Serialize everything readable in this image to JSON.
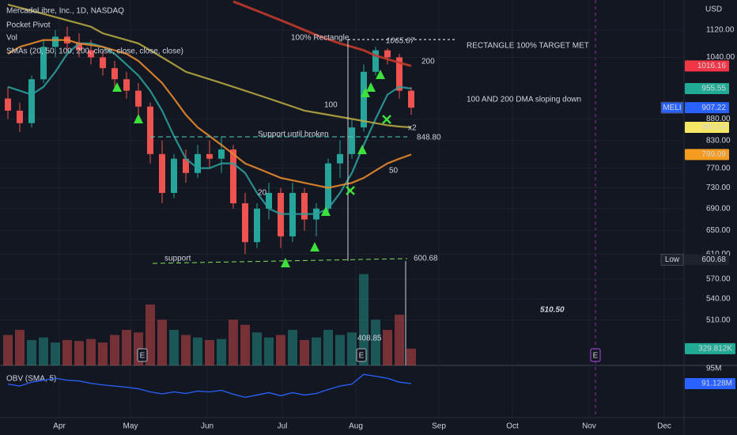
{
  "header": {
    "symbol": "MercadoLibre, Inc., 1D, NASDAQ",
    "indicators": [
      "Pocket Pivot",
      "Vol",
      "SMAs (20, 50, 100, 200, close, close, close, close)"
    ]
  },
  "chart_data": {
    "type": "candlestick",
    "currency": "USD",
    "log": true,
    "grid": true,
    "ylim": [
      451,
      1215
    ],
    "yticks": [
      {
        "value": 1120,
        "label": "1120.00"
      },
      {
        "value": 1040,
        "label": "1040.00"
      },
      {
        "value": 880,
        "label": "880.00"
      },
      {
        "value": 830,
        "label": "830.00"
      },
      {
        "value": 770,
        "label": "770.00"
      },
      {
        "value": 730,
        "label": "730.00"
      },
      {
        "value": 690,
        "label": "690.00"
      },
      {
        "value": 650,
        "label": "650.00"
      },
      {
        "value": 610,
        "label": "610.00"
      },
      {
        "value": 570,
        "label": "570.00"
      },
      {
        "value": 540,
        "label": "540.00"
      },
      {
        "value": 510,
        "label": "510.00"
      }
    ],
    "months": [
      "Apr",
      "May",
      "Jun",
      "Jul",
      "Aug",
      "Sep",
      "Oct",
      "Nov",
      "Dec"
    ],
    "up_color": "#26a69a",
    "down_color": "#ef5350",
    "candles": {
      "open": [
        930,
        900,
        870,
        980,
        1070,
        1100,
        1080,
        1060,
        1040,
        1010,
        980,
        950,
        910,
        800,
        720,
        790,
        760,
        800,
        790,
        810,
        700,
        630,
        690,
        720,
        640,
        720,
        670,
        690,
        780,
        800,
        860,
        1000,
        1060,
        1040,
        950
      ],
      "high": [
        960,
        920,
        990,
        1090,
        1120,
        1130,
        1110,
        1090,
        1060,
        1030,
        1000,
        970,
        920,
        830,
        800,
        810,
        820,
        830,
        840,
        820,
        720,
        700,
        740,
        730,
        740,
        730,
        700,
        790,
        830,
        880,
        1020,
        1070,
        1066,
        1050,
        960
      ],
      "low": [
        880,
        850,
        860,
        970,
        1040,
        1060,
        1040,
        1020,
        990,
        960,
        930,
        890,
        780,
        700,
        710,
        740,
        750,
        770,
        760,
        690,
        610,
        620,
        670,
        620,
        630,
        650,
        640,
        680,
        750,
        790,
        850,
        990,
        1020,
        930,
        890
      ],
      "close": [
        900,
        870,
        980,
        1070,
        1100,
        1080,
        1060,
        1040,
        1010,
        980,
        950,
        910,
        800,
        720,
        790,
        760,
        800,
        790,
        810,
        700,
        630,
        690,
        720,
        640,
        720,
        670,
        690,
        780,
        800,
        860,
        1000,
        1060,
        1040,
        950,
        907.22
      ]
    },
    "series": [
      {
        "name": "20",
        "color": "#2a9d9a",
        "values": [
          960,
          950,
          940,
          960,
          1000,
          1050,
          1080,
          1080,
          1070,
          1050,
          1020,
          990,
          950,
          900,
          840,
          790,
          770,
          770,
          780,
          780,
          760,
          720,
          690,
          680,
          680,
          680,
          680,
          690,
          720,
          760,
          820,
          880,
          940,
          960,
          955.55
        ]
      },
      {
        "name": "50",
        "color": "#e68a2e",
        "values": [
          1050,
          1070,
          1080,
          1090,
          1090,
          1090,
          1080,
          1075,
          1070,
          1060,
          1050,
          1030,
          1000,
          970,
          930,
          890,
          860,
          840,
          820,
          800,
          780,
          770,
          760,
          750,
          745,
          740,
          735,
          730,
          735,
          740,
          750,
          765,
          780,
          790,
          799.09
        ]
      },
      {
        "name": "100",
        "color": "#b5a642",
        "values": [
          1200,
          1190,
          1180,
          1170,
          1160,
          1150,
          1140,
          1130,
          1110,
          1100,
          1090,
          1080,
          1060,
          1040,
          1020,
          1000,
          990,
          980,
          970,
          960,
          950,
          940,
          930,
          920,
          910,
          900,
          895,
          890,
          885,
          880,
          875,
          870,
          865,
          862,
          860.14
        ]
      },
      {
        "name": "200",
        "color": "#c0392b",
        "values": [
          null,
          null,
          null,
          null,
          null,
          null,
          null,
          null,
          null,
          null,
          null,
          null,
          null,
          null,
          null,
          null,
          null,
          null,
          null,
          1210,
          1195,
          1180,
          1165,
          1150,
          1135,
          1120,
          1105,
          1092,
          1080,
          1070,
          1060,
          1045,
          1035,
          1025,
          1016.16
        ]
      }
    ],
    "price_tags": [
      {
        "value": 1016.16,
        "color": "#f23645"
      },
      {
        "value": 955.55,
        "color": "#22ab94"
      },
      {
        "name": "MELI",
        "value": 907.22,
        "color": "#2962ff"
      },
      {
        "value": 860.14,
        "color": "#f5e663"
      },
      {
        "value": 799.09,
        "color": "#f59b1f"
      },
      {
        "name": "Low",
        "value": 600.68,
        "color": "#1e222d"
      }
    ],
    "annotations": [
      {
        "text": "100% Rectangle",
        "color": "#ffffff"
      },
      {
        "text": "1065.67",
        "color": "#ffffff"
      },
      {
        "text": "RECTANGLE 100% TARGET MET",
        "color": "#ffffff"
      },
      {
        "text": "100 AND 200 DMA sloping down",
        "color": "#f59b1f"
      },
      {
        "text": "Support until broken",
        "color": "#c6e84a"
      },
      {
        "text": "848.80",
        "color": "#ffffff"
      },
      {
        "text": "support",
        "color": "#7fe35a"
      },
      {
        "text": "600.68",
        "color": "#ffffff"
      },
      {
        "text": "510.50",
        "color": "#f59b1f"
      },
      {
        "text": "408.85",
        "color": "#f59b1f"
      },
      {
        "text": "x2",
        "color": "#ffffff"
      }
    ],
    "earnings_label": "E",
    "volume": {
      "values": [
        600000,
        700000,
        500000,
        550000,
        450000,
        500000,
        480000,
        520000,
        450000,
        600000,
        700000,
        650000,
        1200000,
        900000,
        700000,
        600000,
        550000,
        500000,
        520000,
        900000,
        800000,
        650000,
        550000,
        600000,
        700000,
        500000,
        550000,
        700000,
        600000,
        650000,
        1800000,
        900000,
        700000,
        1000000,
        329812
      ],
      "ylim": [
        0,
        7200000
      ],
      "last_label": "329.812K"
    },
    "obv": {
      "title": "OBV (SMA, 5)",
      "color": "#2962ff",
      "ylim": [
        82.4,
        95.8
      ],
      "yticks": [
        {
          "value": 95,
          "label": "95M"
        }
      ],
      "last_label": "91.128M",
      "values": [
        91,
        90.5,
        91.5,
        92,
        92.5,
        92,
        91.8,
        91.2,
        90.8,
        90.5,
        90.2,
        89.8,
        89,
        88.5,
        89,
        88.6,
        89.2,
        89,
        89.4,
        88.4,
        87.6,
        88.2,
        88.8,
        88,
        88.8,
        88.2,
        88.6,
        89.6,
        90.5,
        91,
        93.5,
        93,
        92.5,
        91.5,
        91.128
      ]
    }
  }
}
